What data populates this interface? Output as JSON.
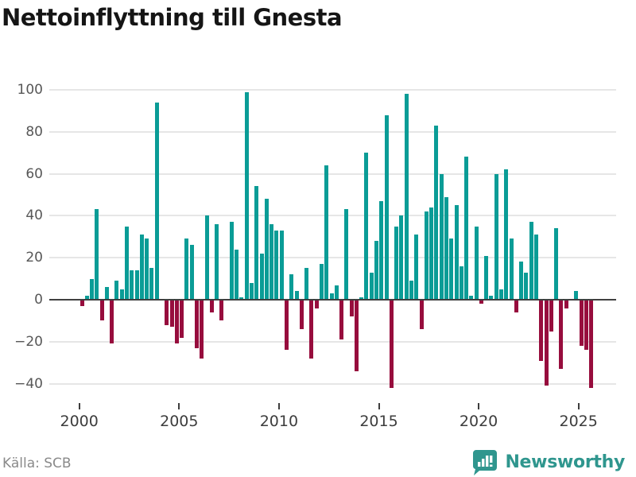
{
  "header": {
    "title": "Nettoinflyttning till Gnesta"
  },
  "footer": {
    "source": "Källa: SCB",
    "brand": "Newsworthy"
  },
  "chart_data": {
    "type": "bar",
    "title": "Nettoinflyttning till Gnesta",
    "ylabel": "",
    "xlabel": "",
    "grid": true,
    "legend": false,
    "ylim": [
      -48,
      109
    ],
    "y_ticks": [
      100,
      80,
      60,
      40,
      20,
      0,
      -20,
      -40
    ],
    "y_tick_labels": [
      "100",
      "80",
      "60",
      "40",
      "20",
      "0",
      "−20",
      "−40"
    ],
    "x_ticks": [
      "2000",
      "2005",
      "2010",
      "2015",
      "2020",
      "2025"
    ],
    "positive_color": "#0a9c96",
    "negative_color": "#970d3d",
    "categories": [
      "2000 Q1",
      "2000 Q2",
      "2000 Q3",
      "2000 Q4",
      "2001 Q1",
      "2001 Q2",
      "2001 Q3",
      "2001 Q4",
      "2002 Q1",
      "2002 Q2",
      "2002 Q3",
      "2002 Q4",
      "2003 Q1",
      "2003 Q2",
      "2003 Q3",
      "2003 Q4",
      "2004 Q1",
      "2004 Q2",
      "2004 Q3",
      "2004 Q4",
      "2005 Q1",
      "2005 Q2",
      "2005 Q3",
      "2005 Q4",
      "2006 Q1",
      "2006 Q2",
      "2006 Q3",
      "2006 Q4",
      "2007 Q1",
      "2007 Q2",
      "2007 Q3",
      "2007 Q4",
      "2008 Q1",
      "2008 Q2",
      "2008 Q3",
      "2008 Q4",
      "2009 Q1",
      "2009 Q2",
      "2009 Q3",
      "2009 Q4",
      "2010 Q1",
      "2010 Q2",
      "2010 Q3",
      "2010 Q4",
      "2011 Q1",
      "2011 Q2",
      "2011 Q3",
      "2011 Q4",
      "2012 Q1",
      "2012 Q2",
      "2012 Q3",
      "2012 Q4",
      "2013 Q1",
      "2013 Q2",
      "2013 Q3",
      "2013 Q4",
      "2014 Q1",
      "2014 Q2",
      "2014 Q3",
      "2014 Q4",
      "2015 Q1",
      "2015 Q2",
      "2015 Q3",
      "2015 Q4",
      "2016 Q1",
      "2016 Q2",
      "2016 Q3",
      "2016 Q4",
      "2017 Q1",
      "2017 Q2",
      "2017 Q3",
      "2017 Q4",
      "2018 Q1",
      "2018 Q2",
      "2018 Q3",
      "2018 Q4",
      "2019 Q1",
      "2019 Q2",
      "2019 Q3",
      "2019 Q4",
      "2020 Q1",
      "2020 Q2",
      "2020 Q3",
      "2020 Q4",
      "2021 Q1",
      "2021 Q2",
      "2021 Q3",
      "2021 Q4",
      "2022 Q1",
      "2022 Q2",
      "2022 Q3",
      "2022 Q4",
      "2023 Q1",
      "2023 Q2",
      "2023 Q3",
      "2023 Q4",
      "2024 Q1",
      "2024 Q2",
      "2024 Q3",
      "2024 Q4",
      "2025 Q1",
      "2025 Q2",
      "2025 Q3"
    ],
    "values": [
      -3,
      2,
      10,
      43,
      -10,
      6,
      -21,
      9,
      5,
      35,
      14,
      14,
      31,
      29,
      15,
      94,
      0,
      -12,
      -13,
      -21,
      -18,
      29,
      26,
      -23,
      -28,
      40,
      -6,
      36,
      -10,
      0,
      37,
      24,
      1,
      99,
      8,
      54,
      22,
      48,
      36,
      33,
      33,
      -24,
      12,
      4,
      -14,
      15,
      -28,
      -4,
      17,
      64,
      3,
      7,
      -19,
      43,
      -8,
      -34,
      1,
      70,
      13,
      28,
      47,
      88,
      -42,
      35,
      40,
      98,
      9,
      31,
      -14,
      42,
      44,
      83,
      60,
      49,
      29,
      45,
      16,
      68,
      2,
      35,
      -2,
      21,
      2,
      60,
      5,
      62,
      29,
      -6,
      18,
      13,
      37,
      31,
      -29,
      -41,
      -15,
      34,
      -33,
      -4,
      0,
      4,
      -22,
      -24,
      -42
    ]
  }
}
